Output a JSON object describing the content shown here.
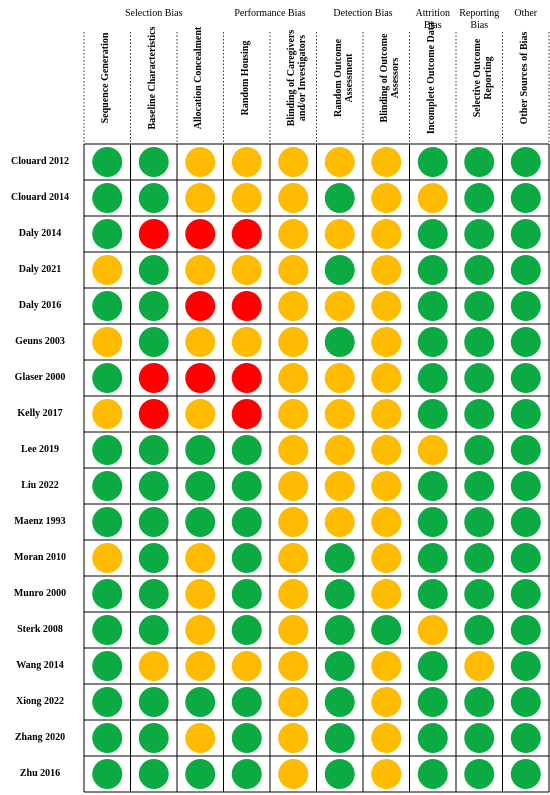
{
  "groups": [
    {
      "label": "Selection Bias",
      "span": [
        0,
        2
      ]
    },
    {
      "label": "Performance Bias",
      "span": [
        3,
        4
      ]
    },
    {
      "label": "Detection Bias",
      "span": [
        5,
        6
      ]
    },
    {
      "label": "Attrition Bias",
      "span": [
        7,
        7
      ]
    },
    {
      "label": "Reporting Bias",
      "span": [
        8,
        8
      ]
    },
    {
      "label": "Other",
      "span": [
        9,
        9
      ]
    }
  ],
  "columns": [
    "Sequence Generation",
    "Baseline Characteristics",
    "Allocation Concealment",
    "Random Housing",
    "Blinding of Caregivers and/or Investigators",
    "Random Outcome Assessment",
    "Blinding of Outcome Assessors",
    "Incomplete Outcome Data",
    "Selective Outcome Reporting",
    "Other Sources of Bias"
  ],
  "colors": {
    "low": "#0caa42",
    "unclear": "#ffbb00",
    "high": "#ff0000"
  },
  "rows": [
    {
      "study": "Clouard 2012",
      "ratings": [
        "low",
        "low",
        "unclear",
        "unclear",
        "unclear",
        "unclear",
        "unclear",
        "low",
        "low",
        "low"
      ]
    },
    {
      "study": "Clouard 2014",
      "ratings": [
        "low",
        "low",
        "unclear",
        "unclear",
        "unclear",
        "low",
        "unclear",
        "unclear",
        "low",
        "low"
      ]
    },
    {
      "study": "Daly 2014",
      "ratings": [
        "low",
        "high",
        "high",
        "high",
        "unclear",
        "unclear",
        "unclear",
        "low",
        "low",
        "low"
      ]
    },
    {
      "study": "Daly 2021",
      "ratings": [
        "unclear",
        "low",
        "unclear",
        "unclear",
        "unclear",
        "low",
        "unclear",
        "low",
        "low",
        "low"
      ]
    },
    {
      "study": "Daly 2016",
      "ratings": [
        "low",
        "low",
        "high",
        "high",
        "unclear",
        "unclear",
        "unclear",
        "low",
        "low",
        "low"
      ]
    },
    {
      "study": "Geuns 2003",
      "ratings": [
        "unclear",
        "low",
        "unclear",
        "unclear",
        "unclear",
        "low",
        "unclear",
        "low",
        "low",
        "low"
      ]
    },
    {
      "study": "Glaser 2000",
      "ratings": [
        "low",
        "high",
        "high",
        "high",
        "unclear",
        "unclear",
        "unclear",
        "low",
        "low",
        "low"
      ]
    },
    {
      "study": "Kelly 2017",
      "ratings": [
        "unclear",
        "high",
        "unclear",
        "high",
        "unclear",
        "unclear",
        "unclear",
        "low",
        "low",
        "low"
      ]
    },
    {
      "study": "Lee 2019",
      "ratings": [
        "low",
        "low",
        "low",
        "low",
        "unclear",
        "unclear",
        "unclear",
        "unclear",
        "low",
        "low"
      ]
    },
    {
      "study": "Liu 2022",
      "ratings": [
        "low",
        "low",
        "low",
        "low",
        "unclear",
        "unclear",
        "unclear",
        "low",
        "low",
        "low"
      ]
    },
    {
      "study": "Maenz 1993",
      "ratings": [
        "low",
        "low",
        "low",
        "low",
        "unclear",
        "unclear",
        "unclear",
        "low",
        "low",
        "low"
      ]
    },
    {
      "study": "Moran 2010",
      "ratings": [
        "unclear",
        "low",
        "unclear",
        "low",
        "unclear",
        "low",
        "unclear",
        "low",
        "low",
        "low"
      ]
    },
    {
      "study": "Munro 2000",
      "ratings": [
        "low",
        "low",
        "unclear",
        "low",
        "unclear",
        "low",
        "unclear",
        "low",
        "low",
        "low"
      ]
    },
    {
      "study": "Sterk 2008",
      "ratings": [
        "low",
        "low",
        "unclear",
        "low",
        "unclear",
        "low",
        "low",
        "unclear",
        "low",
        "low"
      ]
    },
    {
      "study": "Wang 2014",
      "ratings": [
        "low",
        "unclear",
        "unclear",
        "unclear",
        "unclear",
        "low",
        "unclear",
        "low",
        "unclear",
        "low"
      ]
    },
    {
      "study": "Xiong 2022",
      "ratings": [
        "low",
        "low",
        "low",
        "low",
        "unclear",
        "low",
        "unclear",
        "low",
        "low",
        "low"
      ]
    },
    {
      "study": "Zhang 2020",
      "ratings": [
        "low",
        "low",
        "unclear",
        "low",
        "unclear",
        "low",
        "unclear",
        "low",
        "low",
        "low"
      ]
    },
    {
      "study": "Zhu 2016",
      "ratings": [
        "low",
        "low",
        "low",
        "low",
        "unclear",
        "low",
        "unclear",
        "low",
        "low",
        "low"
      ]
    }
  ]
}
